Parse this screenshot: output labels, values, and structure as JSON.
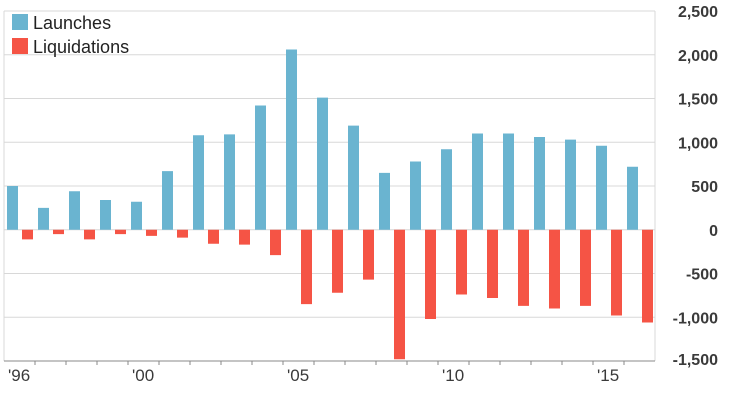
{
  "chart_data": {
    "type": "bar",
    "title": "",
    "xlabel": "",
    "ylabel": "",
    "ylim": [
      -1500,
      2500
    ],
    "yticks": [
      2500,
      2000,
      1500,
      1000,
      500,
      0,
      -500,
      -1000,
      -1500
    ],
    "ytick_labels": [
      "2,500",
      "2,000",
      "1,500",
      "1,000",
      "500",
      "0",
      "-500",
      "-1,000",
      "-1,500"
    ],
    "grid": "horizontal",
    "legend_position": "top-left",
    "x": [
      1996,
      1997,
      1998,
      1999,
      2000,
      2001,
      2002,
      2003,
      2004,
      2005,
      2006,
      2007,
      2008,
      2009,
      2010,
      2011,
      2012,
      2013,
      2014,
      2015,
      2016
    ],
    "x_tick_labels": [
      {
        "year": 1996,
        "label": "'96"
      },
      {
        "year": 2000,
        "label": "'00"
      },
      {
        "year": 2005,
        "label": "'05"
      },
      {
        "year": 2010,
        "label": "'10"
      },
      {
        "year": 2015,
        "label": "'15"
      }
    ],
    "series": [
      {
        "name": "Launches",
        "color": "#6ab4d0",
        "values": [
          500,
          250,
          440,
          340,
          320,
          670,
          1080,
          1090,
          1420,
          2060,
          1510,
          1190,
          650,
          780,
          920,
          1100,
          1100,
          1060,
          1030,
          960,
          720
        ]
      },
      {
        "name": "Liquidations",
        "color": "#f55445",
        "values": [
          -110,
          -50,
          -110,
          -50,
          -70,
          -90,
          -160,
          -170,
          -290,
          -850,
          -720,
          -570,
          -1480,
          -1020,
          -740,
          -780,
          -870,
          -900,
          -870,
          -980,
          -1060
        ]
      }
    ],
    "colors": {
      "grid": "#d8d8d8",
      "axis": "#888888"
    }
  }
}
